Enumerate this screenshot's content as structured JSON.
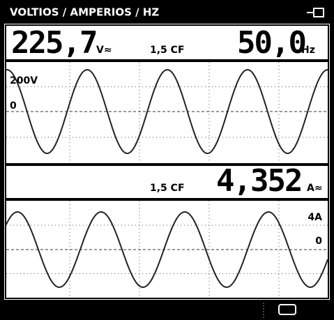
{
  "header": {
    "title": "VOLTIOS / AMPERIOS / HZ"
  },
  "voltage_reading": {
    "value": "225,7",
    "unit": "V≈",
    "crest_factor": "1,5 CF",
    "frequency": "50,0",
    "frequency_unit": "Hz"
  },
  "voltage_trace": {
    "scale_label": "200V",
    "zero_label": "0"
  },
  "current_reading": {
    "crest_factor": "1,5 CF",
    "value": "4,352",
    "unit": "A≈"
  },
  "current_trace": {
    "scale_label": "4A",
    "zero_label": "0"
  }
}
